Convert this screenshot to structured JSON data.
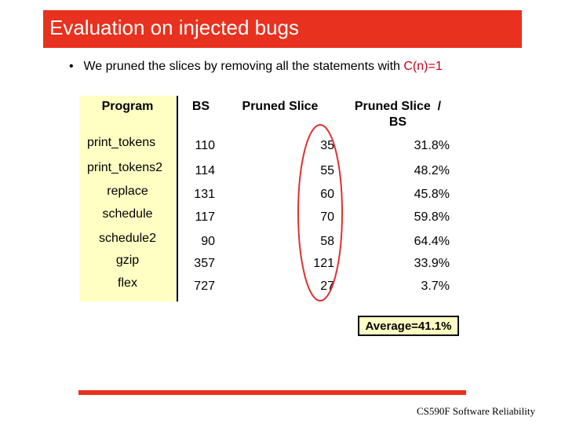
{
  "title": "Evaluation on injected bugs",
  "bullet": {
    "text": "We pruned the slices by removing all the statements with",
    "condition": "C(n)=1"
  },
  "table": {
    "headers": {
      "program": "Program",
      "bs": "BS",
      "pruned": "Pruned Slice",
      "ratio_line1": "Pruned Slice  /",
      "ratio_line2": "BS"
    },
    "rows": [
      {
        "program": "print_tokens",
        "bs": "110",
        "pruned": "35",
        "ratio": "31.8%"
      },
      {
        "program": "print_tokens2",
        "bs": "114",
        "pruned": "55",
        "ratio": "48.2%"
      },
      {
        "program": "replace",
        "bs": "131",
        "pruned": "60",
        "ratio": "45.8%"
      },
      {
        "program": "schedule",
        "bs": "117",
        "pruned": "70",
        "ratio": "59.8%"
      },
      {
        "program": "schedule2",
        "bs": "90",
        "pruned": "58",
        "ratio": "64.4%"
      },
      {
        "program": "gzip",
        "bs": "357",
        "pruned": "121",
        "ratio": "33.9%"
      },
      {
        "program": "flex",
        "bs": "727",
        "pruned": "27",
        "ratio": "3.7%"
      }
    ]
  },
  "average": "Average=41.1%",
  "footer": "CS590F Software Reliability",
  "colors": {
    "accent": "#e8311e",
    "highlight": "#ffffc4",
    "annotation": "#e03030"
  }
}
